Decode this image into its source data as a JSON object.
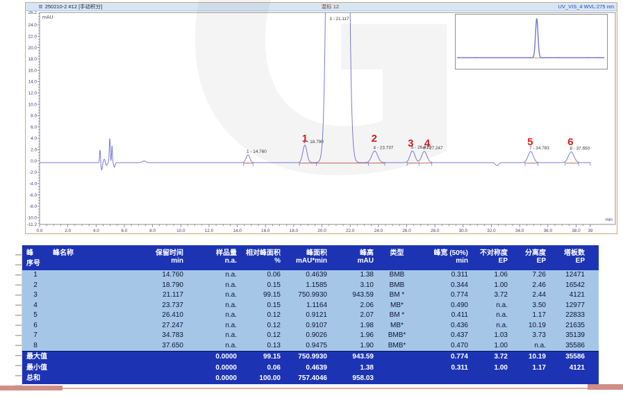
{
  "watermark": "G",
  "chart": {
    "header": {
      "icon": "≣",
      "title_left": "250210-2 #12 [手动积分]",
      "title_center": "混标 12",
      "title_right": "UV_VIS_4 WVL:275 nm"
    }
  },
  "chart_data": {
    "type": "line",
    "title": "混标 12",
    "signal": "UV_VIS_4 WVL:275 nm",
    "xlabel": "min",
    "ylabel": "mAU",
    "xlim": [
      0,
      39
    ],
    "ylim": [
      -11.2,
      26.2
    ],
    "x_major_tick": 2.0,
    "y_major_tick": 2.0,
    "x_end_label": "39",
    "baseline_mau": -0.3,
    "peaks": [
      {
        "no": 1,
        "rt": 14.76,
        "height_mau": 1.38,
        "fwhm_min": 0.311,
        "label": "1 - 14.760",
        "red_number": null
      },
      {
        "no": 2,
        "rt": 18.79,
        "height_mau": 3.1,
        "fwhm_min": 0.344,
        "label": "2 - 18.790",
        "red_number": "1"
      },
      {
        "no": 3,
        "rt": 21.117,
        "height_mau": 943.59,
        "fwhm_min": 0.774,
        "label": "3 - 21.117",
        "red_number": null,
        "label_at_top": true
      },
      {
        "no": 4,
        "rt": 23.737,
        "height_mau": 2.06,
        "fwhm_min": 0.49,
        "label": "4 - 23.737",
        "red_number": "2"
      },
      {
        "no": 5,
        "rt": 26.41,
        "height_mau": 2.07,
        "fwhm_min": 0.411,
        "label": "5 - 26.410",
        "red_number": "3"
      },
      {
        "no": 6,
        "rt": 27.247,
        "height_mau": 1.98,
        "fwhm_min": 0.436,
        "label": "6 - 27.247",
        "red_number": "4"
      },
      {
        "no": 7,
        "rt": 34.783,
        "height_mau": 1.96,
        "fwhm_min": 0.437,
        "label": "7 - 34.783",
        "red_number": "5"
      },
      {
        "no": 8,
        "rt": 37.65,
        "height_mau": 1.9,
        "fwhm_min": 0.47,
        "label": "8 - 37.650",
        "red_number": "6"
      }
    ],
    "integration_segments_min": [
      [
        14.45,
        15.12
      ],
      [
        18.4,
        24.45
      ],
      [
        26.03,
        27.78
      ],
      [
        34.38,
        35.3
      ],
      [
        37.22,
        38.18
      ]
    ],
    "noise_features": [
      {
        "t": 4.28,
        "h": 2.3,
        "sigma": 0.03
      },
      {
        "t": 4.4,
        "h": -1.3,
        "sigma": 0.045
      },
      {
        "t": 4.58,
        "h": 0.6,
        "sigma": 0.05
      },
      {
        "t": 4.74,
        "h": -0.5,
        "sigma": 0.05
      },
      {
        "t": 4.97,
        "h": 4.3,
        "sigma": 0.035
      },
      {
        "t": 5.13,
        "h": 3.0,
        "sigma": 0.03
      },
      {
        "t": 5.3,
        "h": -0.8,
        "sigma": 0.05
      },
      {
        "t": 7.4,
        "h": 0.3,
        "sigma": 0.12
      },
      {
        "t": 32.4,
        "h": -0.5,
        "sigma": 0.12
      }
    ]
  },
  "table": {
    "columns": [
      {
        "l1": "峰",
        "l2": "序号"
      },
      {
        "l1": "峰名称",
        "l2": ""
      },
      {
        "l1": "保留时间",
        "l2": "min"
      },
      {
        "l1": "样品量",
        "l2": "n.a."
      },
      {
        "l1": "相对峰面积",
        "l2": "%"
      },
      {
        "l1": "峰面积",
        "l2": "mAU*min"
      },
      {
        "l1": "峰高",
        "l2": "mAU"
      },
      {
        "l1": "类型",
        "l2": ""
      },
      {
        "l1": "峰宽 (50%)",
        "l2": "min"
      },
      {
        "l1": "不对称度",
        "l2": "EP"
      },
      {
        "l1": "分离度",
        "l2": "EP"
      },
      {
        "l1": "塔板数",
        "l2": "EP"
      }
    ],
    "rows": [
      [
        "1",
        "",
        "14.760",
        "n.a.",
        "0.06",
        "0.4639",
        "1.38",
        "BMB",
        "0.311",
        "1.06",
        "7.26",
        "12471"
      ],
      [
        "2",
        "",
        "18.790",
        "n.a.",
        "0.15",
        "1.1585",
        "3.10",
        "BMB",
        "0.344",
        "1.00",
        "2.46",
        "16542"
      ],
      [
        "3",
        "",
        "21.117",
        "n.a.",
        "99.15",
        "750.9930",
        "943.59",
        "BM *",
        "0.774",
        "3.72",
        "2.44",
        "4121"
      ],
      [
        "4",
        "",
        "23.737",
        "n.a.",
        "0.15",
        "1.1164",
        "2.06",
        "MB*",
        "0.490",
        "n.a.",
        "3.50",
        "12977"
      ],
      [
        "5",
        "",
        "26.410",
        "n.a.",
        "0.12",
        "0.9121",
        "2.07",
        "BM *",
        "0.411",
        "n.a.",
        "1.17",
        "22833"
      ],
      [
        "6",
        "",
        "27.247",
        "n.a.",
        "0.12",
        "0.9107",
        "1.98",
        "MB*",
        "0.436",
        "n.a.",
        "10.19",
        "21635"
      ],
      [
        "7",
        "",
        "34.783",
        "n.a.",
        "0.12",
        "0.9026",
        "1.96",
        "BMB*",
        "0.437",
        "1.03",
        "3.73",
        "35139"
      ],
      [
        "8",
        "",
        "37.650",
        "n.a.",
        "0.13",
        "0.9475",
        "1.90",
        "BMB*",
        "0.470",
        "1.00",
        "n.a.",
        "35586"
      ]
    ],
    "summary_rows": [
      {
        "label": "最大值",
        "values": [
          "",
          "0.0000",
          "99.15",
          "750.9930",
          "943.59",
          "",
          "0.774",
          "3.72",
          "10.19",
          "35586"
        ]
      },
      {
        "label": "最小值",
        "values": [
          "",
          "0.0000",
          "0.06",
          "0.4639",
          "1.38",
          "",
          "0.311",
          "1.00",
          "1.17",
          "4121"
        ]
      },
      {
        "label": "总和",
        "values": [
          "",
          "0.0000",
          "100.00",
          "757.4046",
          "958.03",
          "",
          "",
          "",
          "",
          ""
        ]
      }
    ]
  },
  "colors": {
    "table_header_bg": "#1c34b4",
    "table_row_bg": "#a6c6e8",
    "trace": "#7b7bd8",
    "integration_baseline": "#cc6352",
    "peak_number_red": "#e01b1b",
    "header_bar_bg": "#d7e6f7"
  }
}
